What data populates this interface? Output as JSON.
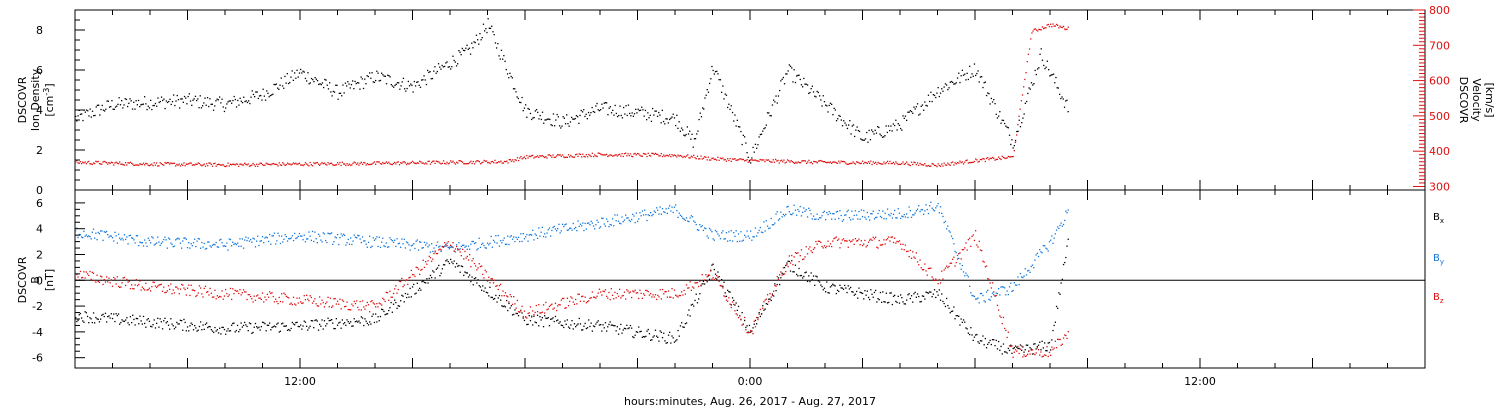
{
  "colors": {
    "black": "#000000",
    "red": "#dd1111",
    "blue": "#1177dd"
  },
  "xaxis": {
    "label": "hours:minutes, Aug. 26, 2017 - Aug. 27, 2017",
    "range": [
      "2017-08-26 06:00",
      "2017-08-27 18:00"
    ],
    "ticks": [
      {
        "label": "12:00",
        "t": "2017-08-26 12:00"
      },
      {
        "label": "0:00",
        "t": "2017-08-27 00:00"
      },
      {
        "label": "12:00",
        "t": "2017-08-27 12:00"
      }
    ]
  },
  "chart_data": [
    {
      "type": "scatter",
      "ylabel_left": [
        "DSCOVR",
        "Ion Density",
        "[cm^-3]"
      ],
      "ylabel_right": [
        "DSCOVR",
        "Velocity",
        "[km/s]"
      ],
      "ylim_left": [
        0,
        9
      ],
      "ylim_right": [
        290,
        800
      ],
      "yticks_left": [
        0,
        2,
        4,
        6,
        8
      ],
      "yticks_right": [
        300,
        400,
        500,
        600,
        700,
        800
      ],
      "series": [
        {
          "axis": "left",
          "color": "black",
          "x": [
            "2017-08-26 06:00",
            "2017-08-26 07:00",
            "2017-08-26 08:00",
            "2017-08-26 09:00",
            "2017-08-26 10:00",
            "2017-08-26 11:00",
            "2017-08-26 12:00",
            "2017-08-26 13:00",
            "2017-08-26 14:00",
            "2017-08-26 15:00",
            "2017-08-26 16:00",
            "2017-08-26 16:30",
            "2017-08-26 17:00",
            "2017-08-26 18:00",
            "2017-08-26 19:00",
            "2017-08-26 20:00",
            "2017-08-26 21:00",
            "2017-08-26 22:00",
            "2017-08-26 22:30",
            "2017-08-26 23:00",
            "2017-08-27 00:00",
            "2017-08-27 01:00",
            "2017-08-27 02:00",
            "2017-08-27 03:00",
            "2017-08-27 04:00",
            "2017-08-27 05:00",
            "2017-08-27 06:00",
            "2017-08-27 07:00",
            "2017-08-27 07:45",
            "2017-08-27 08:30"
          ],
          "y": [
            3.6,
            4.3,
            4.4,
            4.5,
            4.3,
            4.8,
            5.9,
            4.9,
            5.7,
            5.2,
            6.4,
            7.0,
            8.3,
            4.0,
            3.4,
            4.1,
            3.9,
            3.6,
            2.4,
            6.2,
            1.6,
            6.0,
            4.3,
            2.6,
            3.3,
            5.0,
            6.1,
            2.4,
            6.8,
            4.0
          ]
        },
        {
          "axis": "right",
          "color": "red",
          "x": [
            "2017-08-26 06:00",
            "2017-08-26 08:00",
            "2017-08-26 10:00",
            "2017-08-26 12:00",
            "2017-08-26 14:00",
            "2017-08-26 16:00",
            "2017-08-26 17:30",
            "2017-08-26 18:00",
            "2017-08-26 20:00",
            "2017-08-26 22:00",
            "2017-08-26 23:00",
            "2017-08-27 00:00",
            "2017-08-27 02:00",
            "2017-08-27 04:00",
            "2017-08-27 05:00",
            "2017-08-27 06:00",
            "2017-08-27 07:00",
            "2017-08-27 07:30",
            "2017-08-27 08:00",
            "2017-08-27 08:30"
          ],
          "y": [
            370,
            365,
            363,
            365,
            367,
            370,
            372,
            385,
            392,
            390,
            380,
            375,
            370,
            368,
            362,
            375,
            385,
            740,
            760,
            748
          ]
        }
      ]
    },
    {
      "type": "scatter",
      "ylabel": [
        "DSCOVR",
        "B",
        "[nT]"
      ],
      "ylim": [
        -6.8,
        7
      ],
      "yticks": [
        -6,
        -4,
        -2,
        0,
        2,
        4,
        6
      ],
      "zero_line": true,
      "series": [
        {
          "name": "Bx",
          "color": "black",
          "x": [
            "2017-08-26 06:00",
            "2017-08-26 08:00",
            "2017-08-26 10:00",
            "2017-08-26 12:00",
            "2017-08-26 14:00",
            "2017-08-26 16:00",
            "2017-08-26 18:00",
            "2017-08-26 20:00",
            "2017-08-26 22:00",
            "2017-08-26 23:00",
            "2017-08-27 00:00",
            "2017-08-27 01:00",
            "2017-08-27 02:00",
            "2017-08-27 04:00",
            "2017-08-27 05:00",
            "2017-08-27 06:00",
            "2017-08-27 07:00",
            "2017-08-27 08:00",
            "2017-08-27 08:30"
          ],
          "y": [
            -2.7,
            -3.2,
            -3.7,
            -3.5,
            -3.0,
            1.5,
            -3.0,
            -3.5,
            -4.5,
            1.0,
            -4.0,
            1.3,
            -0.5,
            -1.5,
            -1.0,
            -4.5,
            -5.5,
            -5.0,
            3.5
          ]
        },
        {
          "name": "By",
          "color": "blue",
          "x": [
            "2017-08-26 06:00",
            "2017-08-26 08:00",
            "2017-08-26 10:00",
            "2017-08-26 12:00",
            "2017-08-26 14:00",
            "2017-08-26 16:00",
            "2017-08-26 18:00",
            "2017-08-26 20:00",
            "2017-08-26 22:00",
            "2017-08-26 23:00",
            "2017-08-27 00:00",
            "2017-08-27 01:00",
            "2017-08-27 02:00",
            "2017-08-27 04:00",
            "2017-08-27 05:00",
            "2017-08-27 06:00",
            "2017-08-27 07:00",
            "2017-08-27 08:00",
            "2017-08-27 08:30"
          ],
          "y": [
            3.8,
            3.0,
            2.8,
            3.5,
            3.0,
            2.5,
            3.5,
            4.5,
            5.5,
            3.5,
            3.5,
            5.5,
            5.0,
            5.2,
            5.8,
            -1.5,
            -0.5,
            3.0,
            5.5
          ]
        },
        {
          "name": "Bz",
          "color": "red",
          "x": [
            "2017-08-26 06:00",
            "2017-08-26 08:00",
            "2017-08-26 10:00",
            "2017-08-26 12:00",
            "2017-08-26 14:00",
            "2017-08-26 16:00",
            "2017-08-26 18:00",
            "2017-08-26 20:00",
            "2017-08-26 22:00",
            "2017-08-26 23:00",
            "2017-08-27 00:00",
            "2017-08-27 01:00",
            "2017-08-27 02:00",
            "2017-08-27 04:00",
            "2017-08-27 05:00",
            "2017-08-27 06:00",
            "2017-08-27 07:00",
            "2017-08-27 08:00",
            "2017-08-27 08:30"
          ],
          "y": [
            0.5,
            -0.5,
            -1.0,
            -1.5,
            -2.0,
            3.0,
            -2.5,
            -1.0,
            -1.0,
            0.5,
            -4.0,
            1.5,
            3.0,
            3.0,
            0.0,
            3.5,
            -5.5,
            -5.5,
            -4.0
          ]
        }
      ],
      "legend": [
        {
          "label": "B",
          "sub": "x",
          "color": "black"
        },
        {
          "label": "B",
          "sub": "y",
          "color": "blue"
        },
        {
          "label": "B",
          "sub": "z",
          "color": "red"
        }
      ]
    }
  ]
}
